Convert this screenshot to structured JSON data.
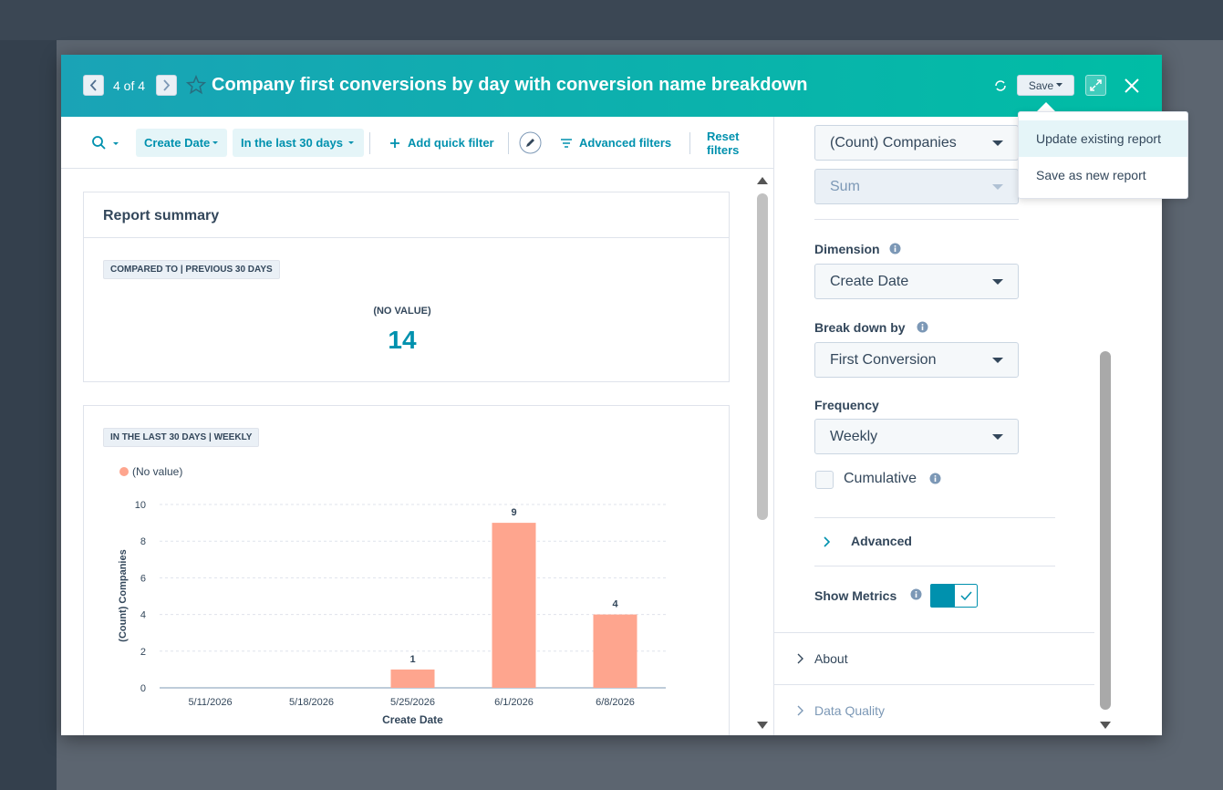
{
  "header": {
    "pager": "4 of 4",
    "title": "Company first conversions by day with conversion name breakdown",
    "save": "Save"
  },
  "save_menu": [
    "Update existing report",
    "Save as new report"
  ],
  "filters": {
    "create_date": "Create Date",
    "range": "In the last 30 days",
    "add_quick_filter": "Add quick filter",
    "advanced_filters": "Advanced filters",
    "reset_filters": "Reset filters"
  },
  "summary": {
    "title": "Report summary",
    "badge": "COMPARED TO | PREVIOUS 30 DAYS",
    "label": "(NO VALUE)",
    "value": 14
  },
  "chart_data": {
    "type": "bar",
    "badge": "IN THE LAST 30 DAYS | WEEKLY",
    "categories": [
      "5/11/2026",
      "5/18/2026",
      "5/25/2026",
      "6/1/2026",
      "6/8/2026"
    ],
    "series": [
      {
        "name": "(No value)",
        "color": "#fea58e",
        "values": [
          null,
          null,
          1,
          9,
          4
        ]
      }
    ],
    "ylim": [
      0,
      10
    ],
    "yticks": [
      0,
      2,
      4,
      6,
      8,
      10
    ],
    "ylabel": "(Count) Companies",
    "xlabel": "Create Date",
    "grid": true
  },
  "settings": {
    "measure": "(Count) Companies",
    "aggregation": "Sum",
    "dimension_label": "Dimension",
    "dimension": "Create Date",
    "breakdown_label": "Break down by",
    "breakdown": "First Conversion",
    "frequency_label": "Frequency",
    "frequency": "Weekly",
    "cumulative": "Cumulative",
    "advanced": "Advanced",
    "show_metrics": "Show Metrics",
    "about": "About",
    "data_quality": "Data Quality"
  }
}
